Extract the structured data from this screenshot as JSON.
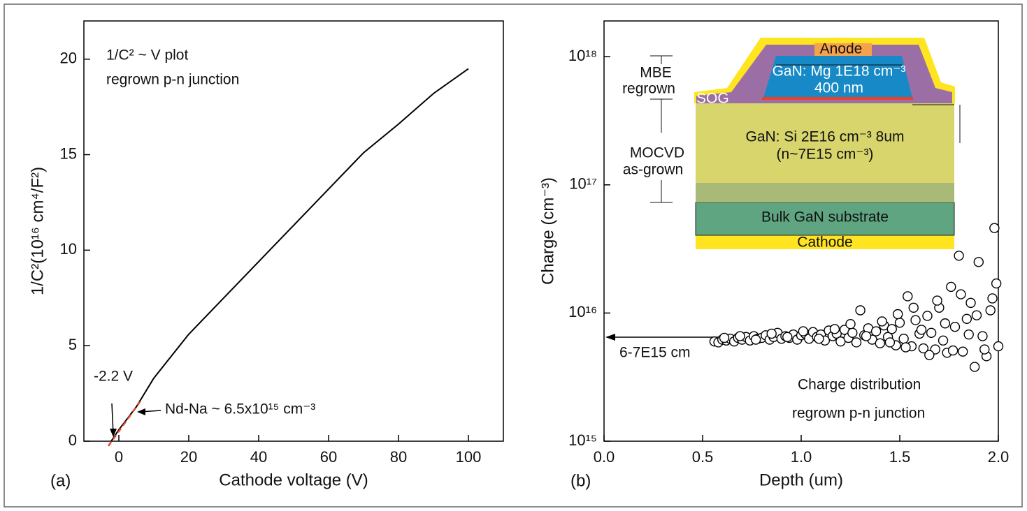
{
  "chart_data": [
    {
      "type": "line",
      "x_label": "Cathode voltage (V)",
      "y_label": "1/C²(10¹⁶ cm⁴/F²)",
      "panel_label": "(a)",
      "annotations": [
        "1/C² ~ V plot",
        "regrown p-n junction",
        "-2.2 V",
        "Nd-Na ~ 6.5x10¹⁵ cm⁻³"
      ],
      "xlim": [
        -10,
        110
      ],
      "ylim": [
        0,
        22
      ],
      "xticks": [
        0,
        20,
        40,
        60,
        80,
        100
      ],
      "yticks": [
        0,
        5,
        10,
        15,
        20
      ],
      "series": [
        {
          "color": "#000000",
          "x": [
            -2.2,
            0,
            5,
            10,
            20,
            30,
            40,
            50,
            60,
            70,
            80,
            90,
            100
          ],
          "values": [
            0,
            0.6,
            1.8,
            3.3,
            5.6,
            7.5,
            9.4,
            11.3,
            13.2,
            15.1,
            16.6,
            18.2,
            19.5
          ]
        },
        {
          "color": "#e8412c",
          "dashed": true,
          "x": [
            -3,
            6
          ],
          "values": [
            -0.25,
            2.05
          ]
        }
      ]
    },
    {
      "type": "scatter",
      "x_label": "Depth (um)",
      "y_label": "Charge (cm⁻³)",
      "panel_label": "(b)",
      "annotations": [
        "6-7E15 cm",
        "Charge distribution",
        "regrown p-n junction"
      ],
      "log_y": true,
      "xlim": [
        0,
        2
      ],
      "ylim": [
        1000000000000000.0,
        1.9e+18
      ],
      "xticks": [
        {
          "value": 0,
          "label": "0.0"
        },
        {
          "value": 0.5,
          "label": "0.5"
        },
        {
          "value": 1,
          "label": "1.0"
        },
        {
          "value": 1.5,
          "label": "1.5"
        },
        {
          "value": 2,
          "label": "2.0"
        }
      ],
      "yticks": [
        {
          "value": 1000000000000000.0,
          "label": "10¹⁵"
        },
        {
          "value": 1e+16,
          "label": "10¹⁶"
        },
        {
          "value": 1e+17,
          "label": "10¹⁷"
        },
        {
          "value": 1e+18,
          "label": "10¹⁸"
        }
      ],
      "marker_color": "#000000",
      "x": [
        0.56,
        0.58,
        0.6,
        0.62,
        0.64,
        0.66,
        0.68,
        0.7,
        0.72,
        0.74,
        0.76,
        0.78,
        0.8,
        0.82,
        0.84,
        0.86,
        0.88,
        0.9,
        0.92,
        0.94,
        0.96,
        0.98,
        1.0,
        1.02,
        1.04,
        1.06,
        1.08,
        1.1,
        1.12,
        1.14,
        1.16,
        1.18,
        1.2,
        1.22,
        1.24,
        1.26,
        1.28,
        1.3,
        1.32,
        1.34,
        1.36,
        1.38,
        1.4,
        1.42,
        1.44,
        1.46,
        1.48,
        1.5,
        1.52,
        1.54,
        1.56,
        1.58,
        1.6,
        1.62,
        1.64,
        1.66,
        1.68,
        1.7,
        1.72,
        1.74,
        1.76,
        1.78,
        1.8,
        1.82,
        1.84,
        1.86,
        1.88,
        1.9,
        1.92,
        1.94,
        1.96,
        1.98,
        2.0,
        0.61,
        0.69,
        0.77,
        0.85,
        0.93,
        1.01,
        1.09,
        1.17,
        1.25,
        1.33,
        1.41,
        1.45,
        1.49,
        1.53,
        1.57,
        1.61,
        1.65,
        1.69,
        1.73,
        1.77,
        1.81,
        1.85,
        1.89,
        1.93,
        1.97,
        1.99
      ],
      "values": [
        6000000000000000.0,
        5900000000000000.0,
        6200000000000000.0,
        6100000000000000.0,
        6300000000000000.0,
        6000000000000000.0,
        6400000000000000.0,
        6200000000000000.0,
        6500000000000000.0,
        6100000000000000.0,
        6600000000000000.0,
        6300000000000000.0,
        6400000000000000.0,
        6700000000000000.0,
        6200000000000000.0,
        6500000000000000.0,
        7000000000000000.0,
        6300000000000000.0,
        6600000000000000.0,
        6400000000000000.0,
        6800000000000000.0,
        6200000000000000.0,
        6700000000000000.0,
        6900000000000000.0,
        6300000000000000.0,
        7100000000000000.0,
        6500000000000000.0,
        6800000000000000.0,
        6100000000000000.0,
        7300000000000000.0,
        6600000000000000.0,
        6900000000000000.0,
        6000000000000000.0,
        7400000000000000.0,
        6400000000000000.0,
        7000000000000000.0,
        5900000000000000.0,
        1.05e+16,
        6700000000000000.0,
        7600000000000000.0,
        6200000000000000.0,
        7200000000000000.0,
        5800000000000000.0,
        8000000000000000.0,
        6500000000000000.0,
        7500000000000000.0,
        5600000000000000.0,
        8400000000000000.0,
        6300000000000000.0,
        1.35e+16,
        5500000000000000.0,
        8800000000000000.0,
        6900000000000000.0,
        5300000000000000.0,
        9500000000000000.0,
        7000000000000000.0,
        5200000000000000.0,
        1.1e+16,
        6100000000000000.0,
        4900000000000000.0,
        1.6e+16,
        7800000000000000.0,
        2.8e+16,
        5000000000000000.0,
        9000000000000000.0,
        1.2e+16,
        3800000000000000.0,
        2.5e+16,
        6600000000000000.0,
        4600000000000000.0,
        1.05e+16,
        4.6e+16,
        5500000000000000.0,
        6400000000000000.0,
        6600000000000000.0,
        6200000000000000.0,
        6900000000000000.0,
        6500000000000000.0,
        7200000000000000.0,
        6300000000000000.0,
        7500000000000000.0,
        8200000000000000.0,
        6600000000000000.0,
        8600000000000000.0,
        5900000000000000.0,
        9800000000000000.0,
        5400000000000000.0,
        1.1e+16,
        7400000000000000.0,
        4700000000000000.0,
        1.25e+16,
        8300000000000000.0,
        5100000000000000.0,
        1.4e+16,
        6800000000000000.0,
        9600000000000000.0,
        5200000000000000.0,
        1.3e+16,
        1.7e+16
      ],
      "inset": {
        "anode": "Anode",
        "p_layer": "GaN: Mg 1E18 cm⁻³",
        "p_thickness": "400 nm",
        "sog": "SOG",
        "n_layer": "GaN: Si 2E16 cm⁻³ 8um",
        "n_doping": "(n~7E15 cm⁻³)",
        "substrate": "Bulk GaN substrate",
        "cathode": "Cathode",
        "mbe": "MBE",
        "mbe_2": "regrown",
        "mocvd": "MOCVD",
        "mocvd_2": "as-grown"
      }
    }
  ]
}
